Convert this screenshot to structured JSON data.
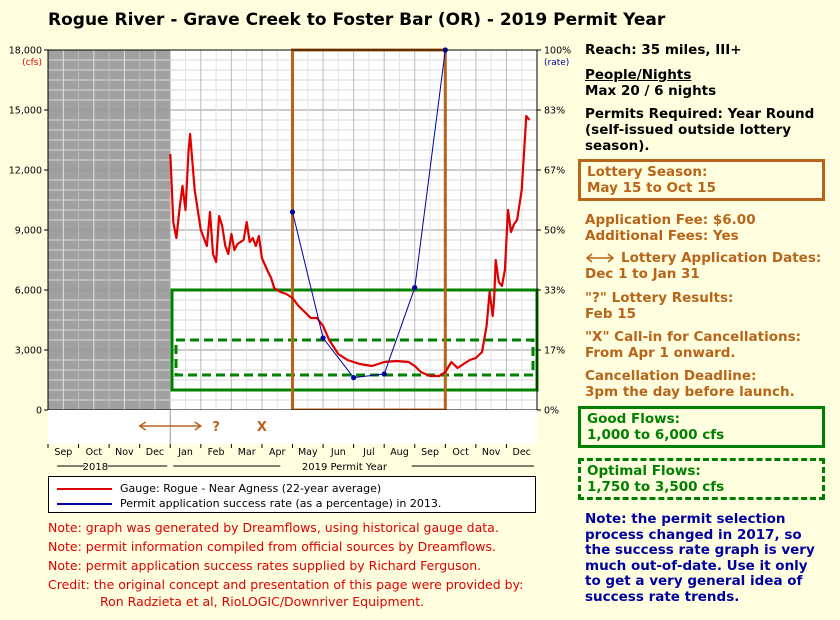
{
  "title": "Rogue River - Grave Creek to Foster Bar (OR) - 2019 Permit Year",
  "info": {
    "reach": "Reach: 35 miles, III+",
    "people_heading": "People/Nights",
    "people_value": "Max 20 / 6 nights",
    "permits_line1": "Permits Required: Year Round",
    "permits_line2": "(self-issued outside lottery",
    "permits_line3": "season).",
    "lottery_season_line1": "Lottery Season:",
    "lottery_season_line2": "May 15 to Oct 15",
    "fee_line1": "Application Fee: $6.00",
    "fee_line2": "Additional Fees: Yes",
    "app_dates_line1": "Lottery Application Dates:",
    "app_dates_line2": "Dec 1 to Jan 31",
    "results_line1": "\"?\" Lottery Results:",
    "results_line2": "Feb 15",
    "callin_line1": "\"X\" Call-in for Cancellations:",
    "callin_line2": "From Apr 1 onward.",
    "deadline_line1": "Cancellation Deadline:",
    "deadline_line2": "3pm the day before launch.",
    "good_line1": "Good Flows:",
    "good_line2": "1,000 to 6,000 cfs",
    "optimal_line1": "Optimal Flows:",
    "optimal_line2": "1,750 to 3,500 cfs"
  },
  "legend": {
    "gauge": "Gauge: Rogue - Near Agness (22-year average)",
    "permit": "Permit application success rate (as a percentage) in 2013."
  },
  "notes": [
    "Note: graph was generated by Dreamflows, using historical gauge data.",
    "Note: permit information compiled from official sources by Dreamflows.",
    "Note: permit application success rates supplied by Richard Ferguson."
  ],
  "credit": {
    "line1": "Credit: the original concept and presentation of this page were provided by:",
    "line2": "Ron Radzieta et al, RioLOGIC/Downriver Equipment."
  },
  "warning": "Note: the permit selection process changed in 2017,  so the success rate graph is very much out-of-date.  Use it only to get a very general idea of success rate trends.",
  "colors": {
    "flow": "#e00000",
    "rate": "#0000a0",
    "lottery_box": "#b8651b",
    "good_box": "#008000",
    "shade": "#a0a0a0"
  },
  "chart_data": {
    "type": "line",
    "months": [
      "Sep",
      "Oct",
      "Nov",
      "Dec",
      "Jan",
      "Feb",
      "Mar",
      "Apr",
      "May",
      "Jun",
      "Jul",
      "Aug",
      "Sep",
      "Oct",
      "Nov",
      "Dec"
    ],
    "year_labels": [
      "2018",
      "2019 Permit Year"
    ],
    "y_left": {
      "label": "(cfs)",
      "ticks": [
        "0",
        "3,000",
        "6,000",
        "9,000",
        "12,000",
        "15,000",
        "18,000"
      ],
      "ylim": [
        0,
        18000
      ]
    },
    "y_right": {
      "label": "(rate)",
      "ticks": [
        "0%",
        "17%",
        "33%",
        "50%",
        "67%",
        "83%",
        "100%"
      ],
      "ylim": [
        0,
        100
      ]
    },
    "flow_series": {
      "name": "Gauge: Rogue - Near Agness (22-year average)",
      "points": [
        [
          4.0,
          12800
        ],
        [
          4.1,
          9400
        ],
        [
          4.2,
          8600
        ],
        [
          4.3,
          10000
        ],
        [
          4.4,
          11200
        ],
        [
          4.5,
          10000
        ],
        [
          4.6,
          13000
        ],
        [
          4.65,
          13800
        ],
        [
          4.8,
          11000
        ],
        [
          5.0,
          9000
        ],
        [
          5.2,
          8200
        ],
        [
          5.3,
          9900
        ],
        [
          5.4,
          7800
        ],
        [
          5.5,
          7400
        ],
        [
          5.6,
          9700
        ],
        [
          5.7,
          9200
        ],
        [
          5.8,
          8200
        ],
        [
          5.9,
          7800
        ],
        [
          6.0,
          8800
        ],
        [
          6.1,
          8000
        ],
        [
          6.2,
          8300
        ],
        [
          6.4,
          8500
        ],
        [
          6.5,
          9400
        ],
        [
          6.6,
          8400
        ],
        [
          6.7,
          8600
        ],
        [
          6.8,
          8200
        ],
        [
          6.9,
          8700
        ],
        [
          7.0,
          7600
        ],
        [
          7.2,
          6900
        ],
        [
          7.3,
          6600
        ],
        [
          7.4,
          6100
        ],
        [
          7.6,
          5900
        ],
        [
          7.8,
          5800
        ],
        [
          8.0,
          5600
        ],
        [
          8.2,
          5200
        ],
        [
          8.4,
          4900
        ],
        [
          8.6,
          4600
        ],
        [
          8.8,
          4600
        ],
        [
          9.0,
          4200
        ],
        [
          9.2,
          3500
        ],
        [
          9.5,
          2800
        ],
        [
          9.8,
          2500
        ],
        [
          10.2,
          2300
        ],
        [
          10.6,
          2200
        ],
        [
          11.0,
          2400
        ],
        [
          11.4,
          2450
        ],
        [
          11.8,
          2400
        ],
        [
          12.0,
          2200
        ],
        [
          12.2,
          1900
        ],
        [
          12.5,
          1700
        ],
        [
          12.8,
          1700
        ],
        [
          13.0,
          1900
        ],
        [
          13.2,
          2400
        ],
        [
          13.4,
          2100
        ],
        [
          13.6,
          2300
        ],
        [
          13.8,
          2500
        ],
        [
          14.0,
          2600
        ],
        [
          14.2,
          2900
        ],
        [
          14.35,
          4200
        ],
        [
          14.45,
          5900
        ],
        [
          14.55,
          4700
        ],
        [
          14.6,
          5600
        ],
        [
          14.65,
          7500
        ],
        [
          14.75,
          6400
        ],
        [
          14.85,
          6200
        ],
        [
          14.95,
          7000
        ],
        [
          15.05,
          10000
        ],
        [
          15.15,
          8900
        ],
        [
          15.25,
          9300
        ],
        [
          15.35,
          9500
        ],
        [
          15.5,
          11000
        ],
        [
          15.6,
          13500
        ],
        [
          15.65,
          14700
        ],
        [
          15.75,
          14500
        ]
      ]
    },
    "rate_series": {
      "name": "Permit application success rate (as a percentage) in 2013.",
      "points": [
        [
          8.0,
          55
        ],
        [
          9.0,
          20
        ],
        [
          10.0,
          9
        ],
        [
          11.0,
          10
        ],
        [
          12.0,
          34
        ],
        [
          13.0,
          100
        ]
      ]
    },
    "shaded_region": {
      "x_start": 0,
      "x_end": 4
    },
    "lottery_window": {
      "x_start": 8.0,
      "x_end": 13.0
    },
    "good_flow_band": [
      1000,
      6000
    ],
    "optimal_flow_band": [
      1750,
      3500
    ],
    "markers": [
      {
        "label": "?",
        "x": 5.5
      },
      {
        "label": "X",
        "x": 7.0
      }
    ]
  }
}
